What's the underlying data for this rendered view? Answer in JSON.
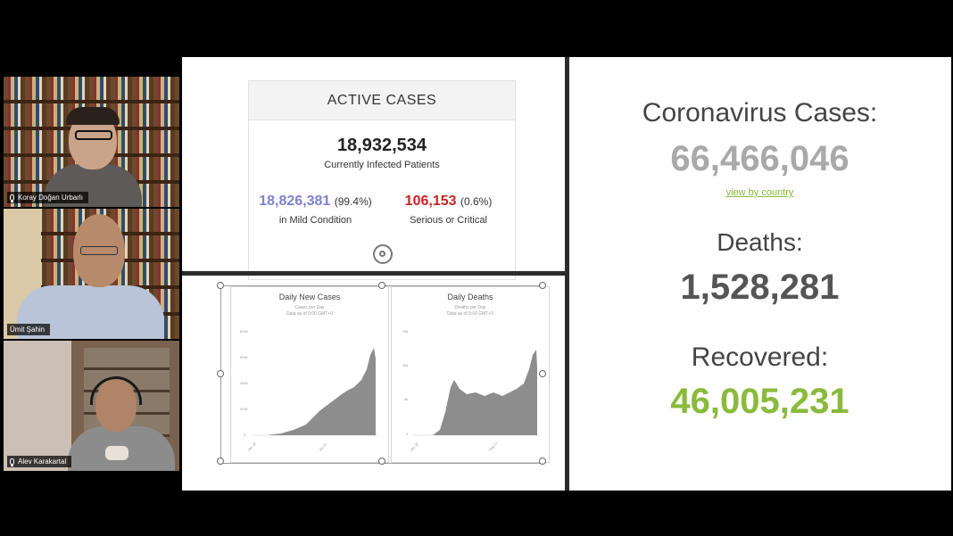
{
  "participants": [
    {
      "name": "Koray Doğan Urbarlı"
    },
    {
      "name": "Ümit Şahin"
    },
    {
      "name": "Alev Karakartal"
    }
  ],
  "active_cases": {
    "header": "ACTIVE CASES",
    "total": "18,932,534",
    "total_label": "Currently Infected Patients",
    "mild_value": "18,826,381",
    "mild_pct": "(99.4%)",
    "mild_label": "in Mild Condition",
    "serious_value": "106,153",
    "serious_pct": "(0.6%)",
    "serious_label": "Serious or Critical",
    "colors": {
      "mild": "#8080cf",
      "serious": "#cc2222"
    }
  },
  "charts": {
    "new_cases": {
      "title": "Daily New Cases",
      "subtitle1": "Cases per Day",
      "subtitle2": "Data as of 0:00 GMT+0",
      "y_ticks": [
        "800k",
        "600k",
        "400k",
        "200k",
        "0"
      ],
      "x_ticks": [
        "Jan 22",
        "Jul 21"
      ]
    },
    "deaths": {
      "title": "Daily Deaths",
      "subtitle1": "Deaths per Day",
      "subtitle2": "Data as of 0:00 GMT+0",
      "y_ticks": [
        "15k",
        "10k",
        "5k",
        "0"
      ],
      "x_ticks": [
        "Jan 22",
        "Aug 17"
      ]
    }
  },
  "summary": {
    "cases_label": "Coronavirus Cases:",
    "cases_value": "66,466,046",
    "view_link": "view by country",
    "deaths_label": "Deaths:",
    "deaths_value": "1,528,281",
    "recovered_label": "Recovered:",
    "recovered_value": "46,005,231",
    "colors": {
      "cases": "#a9a9a9",
      "deaths": "#555555",
      "recovered": "#8aba3c",
      "link": "#8aba3c"
    }
  }
}
